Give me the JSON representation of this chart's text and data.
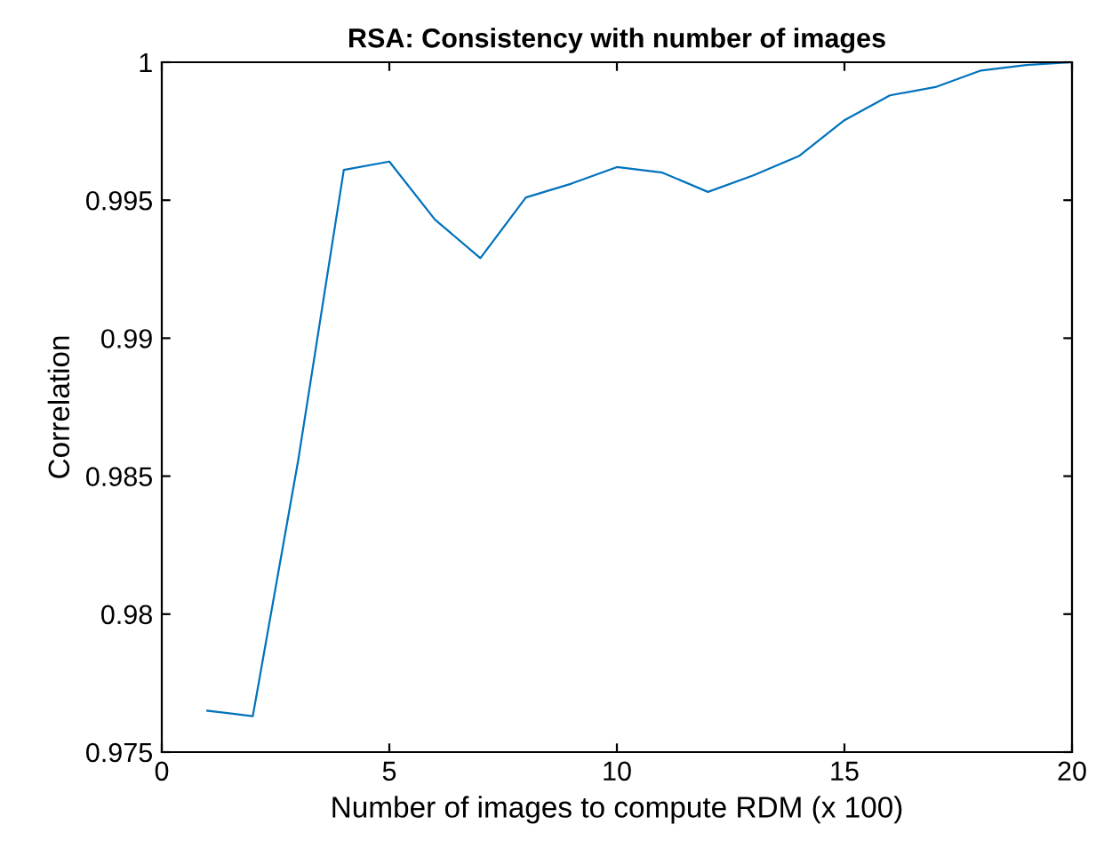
{
  "chart_data": {
    "type": "line",
    "title": "RSA: Consistency with number of images",
    "xlabel": "Number of images to compute RDM (x 100)",
    "ylabel": "Correlation",
    "x": [
      1,
      2,
      3,
      4,
      5,
      6,
      7,
      8,
      9,
      10,
      11,
      12,
      13,
      14,
      15,
      16,
      17,
      18,
      19,
      20
    ],
    "series": [
      {
        "color": "#0072bd",
        "values": [
          0.9765,
          0.9763,
          0.9856,
          0.9961,
          0.9964,
          0.9943,
          0.9929,
          0.9951,
          0.9956,
          0.9962,
          0.996,
          0.9953,
          0.9959,
          0.9966,
          0.9979,
          0.9988,
          0.9991,
          0.9997,
          0.9999,
          1.0
        ]
      }
    ],
    "xlim": [
      0,
      20
    ],
    "xticks": [
      0,
      5,
      10,
      15,
      20
    ],
    "ylim": [
      0.975,
      1
    ],
    "yticks": [
      0.975,
      0.98,
      0.985,
      0.99,
      0.995,
      1
    ],
    "grid": false,
    "legend": false,
    "marker": "none",
    "line_style": "solid"
  }
}
